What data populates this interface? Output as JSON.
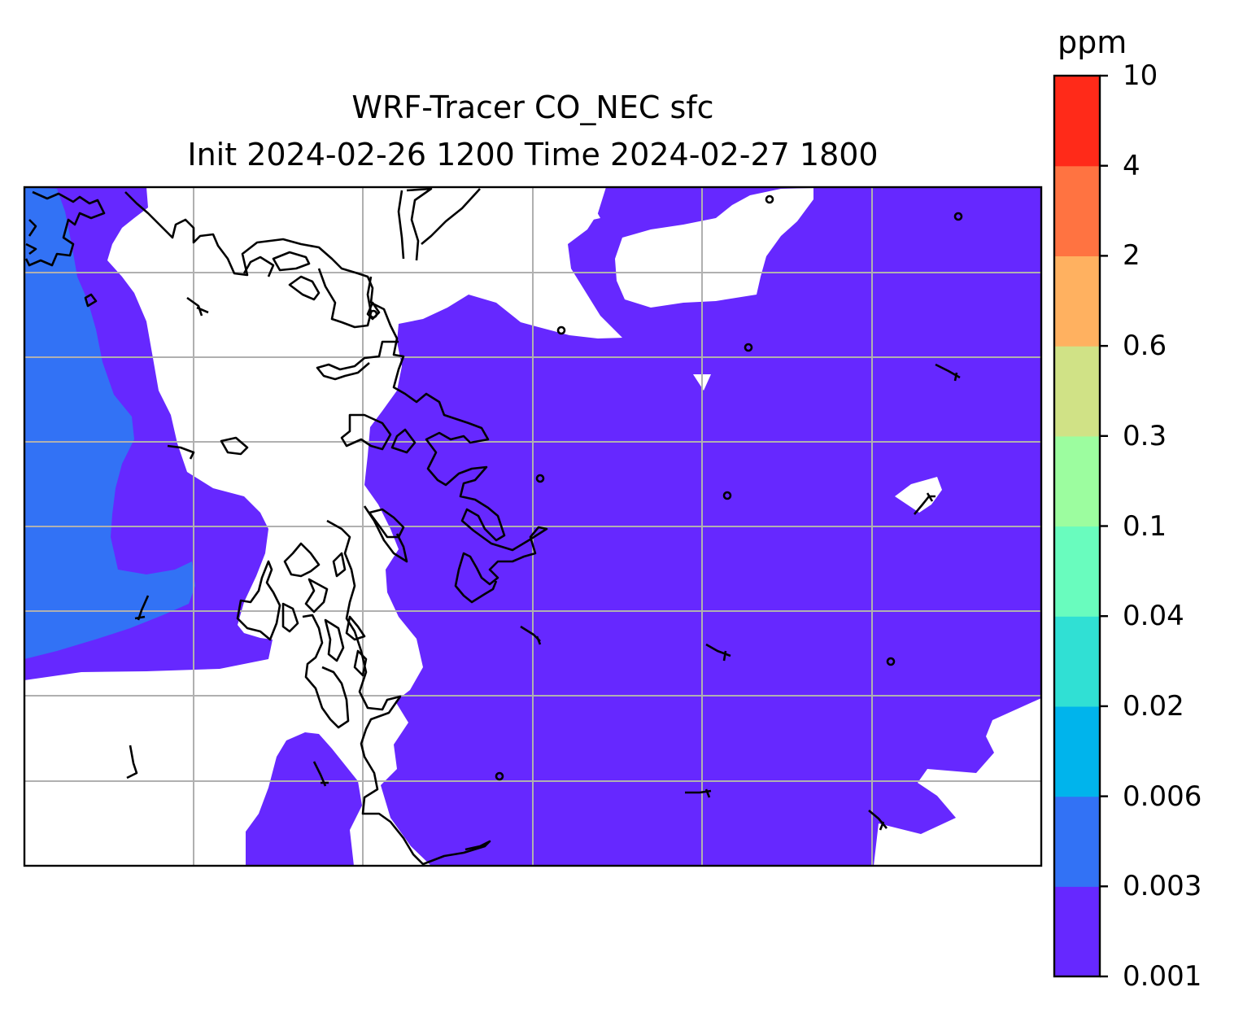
{
  "title": {
    "line1": "WRF-Tracer CO_NEC sfc",
    "line2": "Init 2024-02-26 1200 Time 2024-02-27 1800"
  },
  "colorbar": {
    "unit": "ppm",
    "levels": [
      "0.001",
      "0.003",
      "0.006",
      "0.02",
      "0.04",
      "0.1",
      "0.3",
      "0.6",
      "2",
      "4",
      "10"
    ],
    "colors": [
      "#6628ff",
      "#3272f5",
      "#00b4ec",
      "#30e0d4",
      "#69fcbe",
      "#9cfd9f",
      "#d0e286",
      "#ffb160",
      "#ff7341",
      "#ff2a19"
    ]
  },
  "map": {
    "fill_colors": {
      "low": "#6628ff",
      "mid": "#3272f5",
      "none": "#ffffff"
    },
    "grid_color": "#b0b0b0",
    "coast_color": "#000000"
  }
}
